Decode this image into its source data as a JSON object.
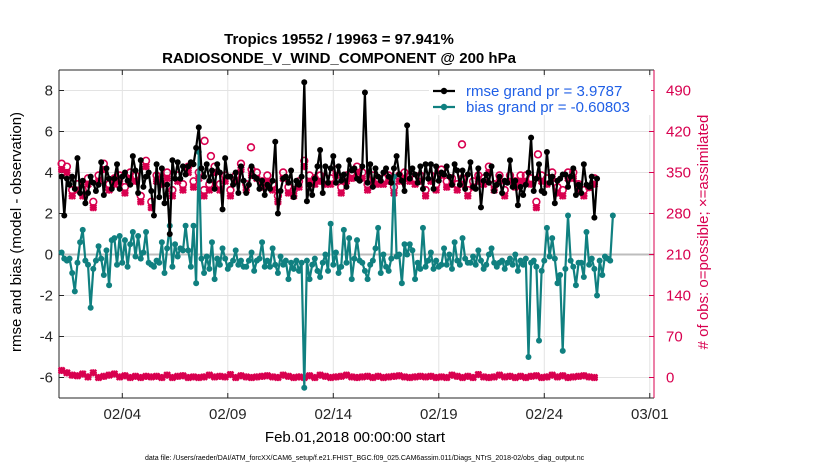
{
  "chart_data": {
    "type": "line",
    "title_line1": "Tropics 19552 / 19963 = 97.941%",
    "title_line2": "RADIOSONDE_V_WIND_COMPONENT @ 200 hPa",
    "xlabel": "Feb.01,2018 00:00:00 start",
    "ylabel_left": "rmse and bias (model - observation)",
    "ylabel_right": "# of obs: o=possible; ×=assimilated",
    "x_tick_labels": [
      "02/04",
      "02/09",
      "02/14",
      "02/19",
      "02/24",
      "03/01"
    ],
    "x_tick_days": [
      3,
      8,
      13,
      18,
      23,
      28
    ],
    "xlim": [
      0,
      28.2
    ],
    "ylim_left": [
      -7,
      9
    ],
    "y_left_ticks": [
      -6,
      -4,
      -2,
      0,
      2,
      4,
      6,
      8
    ],
    "ylim_right": [
      -35,
      525
    ],
    "y_right_ticks": [
      0,
      70,
      140,
      210,
      280,
      350,
      420,
      490
    ],
    "grid": true,
    "legend_position": "top-right",
    "series": [
      {
        "name": "rmse grand pr = 3.9787",
        "color": "#000000",
        "axis": "left",
        "values": [
          3.8,
          1.9,
          3.7,
          3.4,
          3.8,
          3.2,
          4.7,
          3.0,
          3.6,
          2.5,
          3.0,
          3.8,
          3.5,
          3.1,
          3.4,
          4.5,
          2.9,
          4.2,
          3.7,
          3.2,
          3.7,
          4.4,
          3.2,
          3.8,
          4.0,
          3.6,
          3.4,
          4.8,
          4.1,
          3.0,
          4.6,
          3.3,
          3.8,
          4.0,
          3.1,
          1.9,
          4.4,
          2.8,
          4.2,
          2.5,
          3.4,
          1.0,
          4.6,
          3.7,
          4.5,
          3.7,
          4.3,
          3.9,
          4.3,
          4.5,
          4.4,
          5.2,
          6.2,
          4.2,
          3.8,
          4.4,
          3.6,
          4.1,
          3.2,
          4.4,
          4.0,
          2.2,
          4.7,
          3.8,
          3.8,
          3.4,
          4.0,
          3.0,
          4.3,
          3.6,
          3.0,
          3.4,
          4.3,
          3.8,
          3.7,
          3.2,
          3.6,
          2.9,
          3.4,
          3.2,
          3.6,
          5.5,
          2.0,
          3.1,
          3.7,
          3.8,
          3.5,
          4.1,
          2.8,
          3.6,
          3.4,
          3.8,
          8.4,
          2.6,
          3.4,
          2.9,
          3.7,
          4.3,
          5.1,
          3.0,
          4.3,
          3.5,
          4.2,
          4.8,
          3.5,
          4.3,
          3.6,
          3.9,
          3.3,
          4.6,
          4.1,
          4.2,
          3.7,
          3.6,
          4.3,
          7.9,
          3.5,
          4.4,
          3.3,
          4.2,
          3.8,
          3.6,
          4.0,
          4.2,
          3.8,
          3.5,
          4.2,
          4.8,
          3.9,
          3.6,
          3.1,
          6.3,
          3.7,
          4.2,
          3.9,
          3.5,
          4.3,
          3.2,
          4.4,
          3.7,
          4.4,
          3.2,
          4.3,
          3.6,
          4.0,
          3.9,
          4.3,
          3.8,
          3.4,
          4.4,
          4.1,
          3.4,
          4.1,
          3.2,
          3.9,
          4.5,
          3.3,
          3.2,
          4.2,
          2.3,
          3.6,
          3.9,
          3.5,
          4.3,
          3.1,
          3.4,
          3.8,
          3.0,
          3.6,
          3.5,
          4.6,
          3.3,
          3.6,
          2.4,
          3.3,
          2.9,
          3.4,
          4.0,
          5.7,
          3.1,
          3.7,
          4.4,
          3.1,
          3.0,
          5.0,
          3.5,
          3.8,
          2.5,
          3.6,
          3.7,
          3.9,
          3.9,
          3.3,
          3.8,
          4.2,
          2.9,
          3.4,
          3.0,
          4.4,
          3.4,
          3.3,
          3.8,
          1.8,
          3.7
        ],
        "legend": "rmse grand pr = 3.9787"
      },
      {
        "name": "bias grand pr = -0.60803",
        "color": "#108080",
        "axis": "left",
        "values": [
          0.1,
          -0.2,
          -0.3,
          -0.2,
          -0.9,
          -1.8,
          -0.4,
          0.6,
          1.2,
          -0.3,
          -0.5,
          -2.6,
          -0.7,
          -0.3,
          0.4,
          -0.2,
          -1.0,
          0.2,
          -1.5,
          0.7,
          0.8,
          -0.5,
          0.9,
          -0.4,
          0.7,
          -0.6,
          0.5,
          1.1,
          -0.1,
          0.9,
          -0.2,
          0.1,
          1.1,
          -0.4,
          -0.5,
          -0.6,
          -0.3,
          -0.4,
          0.6,
          -0.9,
          0.3,
          1.4,
          -0.6,
          0.5,
          -0.1,
          0.3,
          0.2,
          1.4,
          0.2,
          -0.6,
          1.4,
          -1.4,
          5.0,
          -0.2,
          -0.9,
          -0.1,
          -0.7,
          0.6,
          -1.2,
          -0.2,
          -0.5,
          0.3,
          -0.2,
          -0.7,
          -0.5,
          -0.3,
          0.2,
          -0.5,
          -0.3,
          -0.6,
          -0.6,
          -0.3,
          0.1,
          -0.8,
          -0.3,
          -0.2,
          0.6,
          -0.6,
          -0.3,
          -0.6,
          0.3,
          -0.5,
          -0.9,
          -0.1,
          -0.5,
          -0.3,
          -1.2,
          -0.4,
          -0.7,
          -0.3,
          -0.8,
          -0.4,
          -6.5,
          -0.3,
          -1.2,
          -0.5,
          -0.2,
          -0.8,
          -1.1,
          -0.4,
          0.0,
          -0.8,
          1.5,
          -0.5,
          0.1,
          -0.9,
          -0.6,
          1.2,
          -0.4,
          0.8,
          -1.2,
          -0.2,
          0.7,
          -0.3,
          -0.4,
          -0.8,
          -1.2,
          -0.5,
          -0.3,
          0.3,
          1.3,
          -0.9,
          0.0,
          -0.6,
          -0.8,
          -0.2,
          3.8,
          -0.1,
          0.0,
          -1.4,
          0.5,
          0.0,
          0.5,
          0.2,
          -1.2,
          -0.4,
          -0.7,
          1.3,
          -0.6,
          -0.3,
          0.1,
          -0.7,
          -0.3,
          -0.6,
          -0.5,
          0.3,
          -0.5,
          0.0,
          -0.7,
          0.6,
          -0.3,
          -0.5,
          0.8,
          -0.2,
          -0.4,
          -0.4,
          -0.1,
          -0.5,
          0.2,
          -0.3,
          -0.7,
          -0.5,
          0.0,
          0.3,
          -0.4,
          -0.6,
          -0.4,
          -0.3,
          -0.7,
          -0.4,
          -0.2,
          -0.5,
          0.0,
          -0.8,
          -0.3,
          -0.5,
          -0.2,
          -5.0,
          -0.4,
          -0.3,
          -0.6,
          -4.2,
          -0.8,
          -0.3,
          1.3,
          -0.1,
          0.8,
          -0.2,
          -1.4,
          -1.0,
          -4.7,
          -0.7,
          1.9,
          -0.3,
          -0.6,
          -1.5,
          -0.4,
          -0.4,
          -1.1,
          1.1,
          -0.5,
          -0.2,
          -0.7,
          -2.0,
          -0.3,
          -1.0,
          -0.1,
          -0.2,
          -0.3,
          1.9
        ],
        "legend": "bias grand pr = -0.60803"
      },
      {
        "name": "obs possible",
        "color": "#d8004f",
        "axis": "right",
        "marker": "o",
        "values": [
          365,
          345,
          360,
          350,
          320,
          340,
          330,
          325,
          320,
          340,
          340,
          315,
          300,
          340,
          345,
          330,
          365,
          325,
          330,
          350,
          340,
          360,
          345,
          330,
          325,
          340,
          350,
          335,
          345,
          360,
          310,
          330,
          370,
          345,
          300,
          325,
          345,
          330,
          340,
          325,
          350,
          335,
          320,
          365,
          345,
          340,
          330,
          325,
          360,
          345,
          335,
          345,
          350,
          340,
          320,
          345,
          330,
          335,
          360,
          350,
          330,
          340,
          345,
          335,
          320,
          350,
          345,
          340,
          365,
          330,
          330,
          340,
          355,
          330,
          350,
          335,
          335,
          340,
          345,
          350,
          330,
          355,
          310,
          345,
          350,
          335,
          325,
          340,
          320,
          345,
          335,
          350,
          370,
          280,
          345,
          330,
          340,
          360,
          345,
          325,
          340,
          335,
          340,
          350,
          355,
          330,
          325,
          340,
          345,
          325,
          350,
          340,
          360,
          345,
          350,
          335,
          330,
          355,
          345,
          320,
          340,
          350,
          340,
          330,
          345,
          345,
          325,
          330,
          345,
          340,
          350,
          335,
          345,
          365,
          340,
          345,
          345,
          350,
          320,
          360,
          345,
          340,
          330,
          345,
          355,
          330,
          335,
          345,
          340,
          350,
          330,
          345,
          340,
          345,
          320,
          350,
          335,
          340,
          345,
          325,
          340,
          345,
          360,
          350,
          330,
          335,
          345,
          335,
          320,
          340,
          345,
          330,
          335,
          350,
          345,
          325,
          345,
          320,
          340,
          335,
          300,
          330,
          345,
          350,
          340,
          335,
          350,
          345,
          325,
          330,
          320,
          335,
          350,
          310,
          350,
          345,
          330,
          340,
          320,
          345,
          325,
          330,
          340,
          345,
          335,
          340,
          350,
          335
        ],
        "extra_points": [
          [
            6.9,
            404
          ],
          [
            7.2,
            378
          ],
          [
            9.1,
            393
          ],
          [
            19.1,
            398
          ],
          [
            22.7,
            381
          ]
        ]
      },
      {
        "name": "obs assimilated",
        "color": "#d8004f",
        "axis": "right",
        "marker": "x",
        "values": [
          355,
          335,
          350,
          340,
          310,
          330,
          320,
          315,
          310,
          330,
          330,
          305,
          290,
          330,
          335,
          320,
          355,
          315,
          320,
          340,
          330,
          350,
          335,
          320,
          315,
          330,
          340,
          325,
          335,
          350,
          300,
          320,
          360,
          335,
          290,
          315,
          335,
          320,
          330,
          315,
          340,
          325,
          310,
          355,
          335,
          330,
          320,
          315,
          350,
          335,
          325,
          335,
          340,
          330,
          310,
          335,
          320,
          325,
          350,
          340,
          320,
          330,
          335,
          325,
          310,
          340,
          335,
          330,
          355,
          320,
          320,
          330,
          345,
          320,
          340,
          325,
          325,
          330,
          335,
          340,
          320,
          345,
          300,
          335,
          340,
          325,
          315,
          330,
          310,
          335,
          325,
          340,
          360,
          270,
          335,
          320,
          330,
          350,
          335,
          315,
          330,
          325,
          330,
          340,
          345,
          320,
          315,
          330,
          335,
          315,
          340,
          330,
          350,
          335,
          340,
          325,
          320,
          345,
          335,
          310,
          330,
          340,
          330,
          320,
          335,
          335,
          315,
          320,
          335,
          330,
          340,
          325,
          335,
          355,
          330,
          335,
          335,
          340,
          310,
          350,
          335,
          330,
          320,
          335,
          345,
          320,
          325,
          335,
          330,
          340,
          320,
          335,
          330,
          335,
          310,
          340,
          325,
          330,
          335,
          315,
          330,
          335,
          350,
          340,
          320,
          325,
          335,
          325,
          310,
          330,
          335,
          320,
          325,
          340,
          335,
          315,
          335,
          310,
          330,
          325,
          290,
          320,
          335,
          340,
          330,
          325,
          340,
          335,
          315,
          320,
          310,
          325,
          340,
          300,
          340,
          335,
          320,
          330,
          310,
          335,
          325,
          320,
          330,
          335,
          325,
          330,
          340,
          325
        ],
        "low_values": [
          12,
          5,
          8,
          22,
          4,
          0,
          3,
          2,
          6,
          0,
          1,
          2,
          8,
          3,
          0,
          5,
          2,
          1,
          4,
          0,
          6,
          2,
          1,
          0,
          3,
          1,
          0,
          4,
          2,
          1,
          0,
          3,
          2,
          5,
          1,
          0,
          2,
          3,
          0,
          1,
          4,
          2,
          0,
          1,
          2,
          0,
          3,
          1,
          0,
          2,
          1,
          3,
          0,
          2,
          1,
          0,
          4,
          2,
          1,
          0,
          2,
          3,
          1,
          0,
          5,
          2,
          0,
          1,
          3,
          0,
          1,
          2,
          0,
          4,
          1,
          0,
          2,
          1,
          3,
          0,
          1,
          2,
          0,
          1,
          4,
          0,
          2,
          1,
          0,
          3,
          1,
          2,
          0,
          1,
          3,
          2,
          0,
          1,
          4,
          0,
          2,
          1,
          0,
          3,
          1,
          0,
          2,
          1,
          4,
          0,
          1,
          2,
          0,
          3,
          1,
          0,
          2,
          1,
          0,
          4,
          2,
          1,
          0,
          3,
          1,
          0,
          2,
          1,
          3,
          0,
          1,
          2,
          0,
          4,
          1,
          0,
          2,
          3,
          1,
          0,
          2,
          1,
          0,
          3,
          1,
          2,
          0,
          1,
          4,
          0,
          2,
          1,
          0,
          3,
          2,
          1,
          0,
          2,
          5,
          0,
          1,
          2,
          0,
          3,
          1,
          0,
          4,
          2,
          1,
          0,
          2,
          3,
          0,
          1,
          2,
          18,
          0,
          1,
          2,
          0,
          3,
          1,
          0,
          2,
          1,
          0,
          4,
          2,
          1,
          0,
          3,
          1,
          0,
          2,
          1,
          0,
          2,
          1,
          3,
          0,
          1,
          2,
          0,
          2,
          1,
          0,
          2,
          8,
          2,
          0,
          0
        ]
      }
    ],
    "footnote": "data file: /Users/raeder/DAI/ATM_forcXX/CAM6_setup/f.e21.FHIST_BGC.f09_025.CAM6assim.011/Diags_NTrS_2018-02/obs_diag_output.nc"
  }
}
